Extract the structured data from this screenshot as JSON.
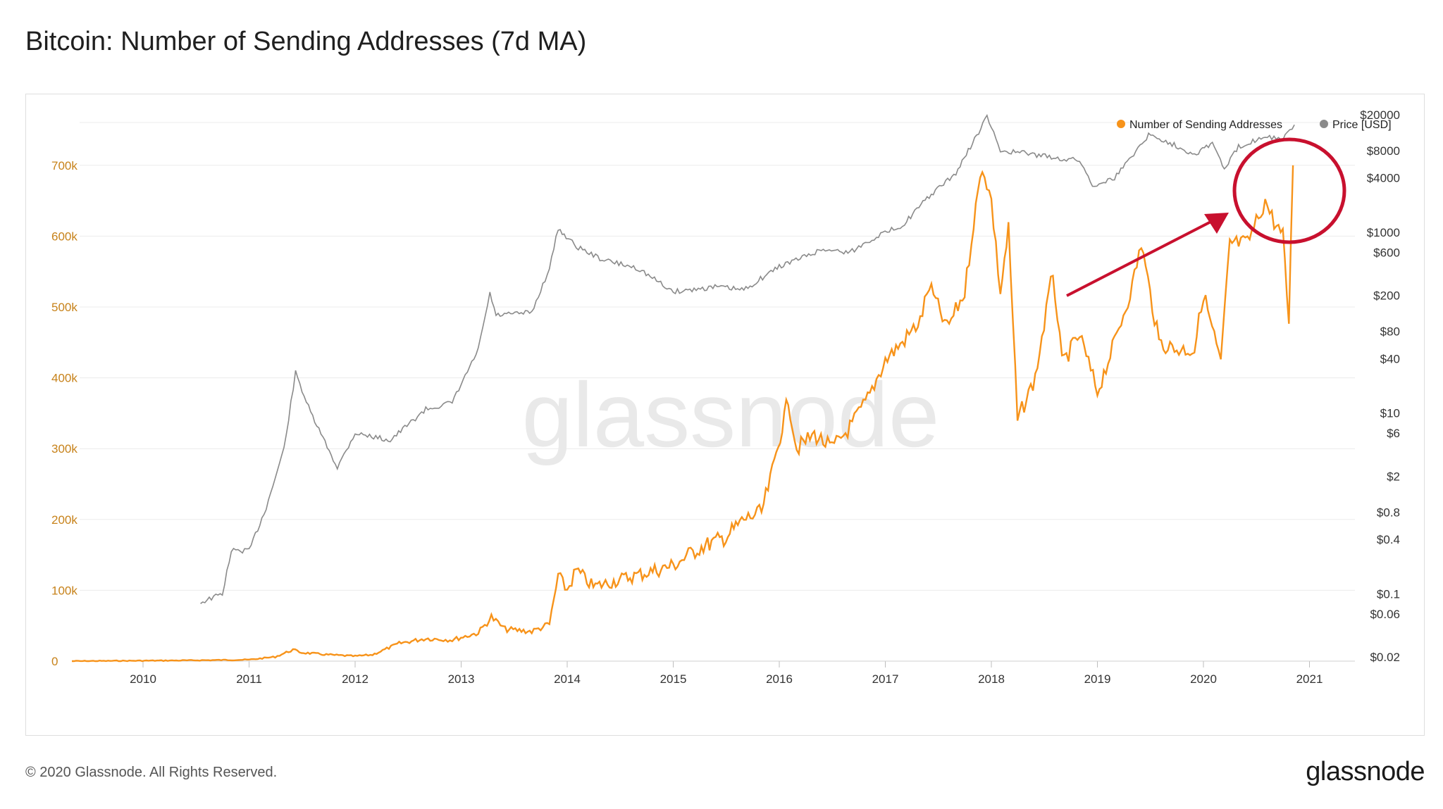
{
  "page": {
    "title": "Bitcoin: Number of Sending Addresses (7d MA)",
    "copyright": "© 2020 Glassnode. All Rights Reserved.",
    "logo_text": "glassnode",
    "watermark": "glassnode"
  },
  "colors": {
    "addresses": "#f7931a",
    "price": "#8a8a8a",
    "annotation": "#c8102e",
    "grid": "#ececec",
    "left_axis_text": "#c7821a"
  },
  "chart_data": {
    "type": "line",
    "x_axis": {
      "ticks": [
        "2010",
        "2011",
        "2012",
        "2013",
        "2014",
        "2015",
        "2016",
        "2017",
        "2018",
        "2019",
        "2020",
        "2021"
      ]
    },
    "y_left": {
      "ticks": [
        "0",
        "100k",
        "200k",
        "300k",
        "400k",
        "500k",
        "600k",
        "700k"
      ],
      "range": [
        0,
        800000
      ]
    },
    "y_right": {
      "scale": "log",
      "ticks": [
        "$20000",
        "$8000",
        "$4000",
        "$1000",
        "$600",
        "$200",
        "$80",
        "$40",
        "$10",
        "$6",
        "$2",
        "$0.8",
        "$0.4",
        "$0.1",
        "$0.06",
        "$0.02"
      ],
      "tick_values": [
        20000,
        8000,
        4000,
        1000,
        600,
        200,
        80,
        40,
        10,
        6,
        2,
        0.8,
        0.4,
        0.1,
        0.06,
        0.02
      ]
    },
    "legend": {
      "position": "top-right",
      "items": [
        "Number of Sending Addresses",
        "Price [USD]"
      ]
    },
    "series": [
      {
        "name": "Number of Sending Addresses",
        "axis": "left",
        "points": [
          [
            "2009-05-01",
            0
          ],
          [
            "2010-06-01",
            1000
          ],
          [
            "2011-01-01",
            2000
          ],
          [
            "2011-04-01",
            6000
          ],
          [
            "2011-06-01",
            16000
          ],
          [
            "2011-07-01",
            12000
          ],
          [
            "2011-10-01",
            9000
          ],
          [
            "2012-01-01",
            7000
          ],
          [
            "2012-03-01",
            9000
          ],
          [
            "2012-06-01",
            25000
          ],
          [
            "2012-09-01",
            32000
          ],
          [
            "2012-12-01",
            30000
          ],
          [
            "2013-03-01",
            40000
          ],
          [
            "2013-04-15",
            62000
          ],
          [
            "2013-06-01",
            45000
          ],
          [
            "2013-09-01",
            42000
          ],
          [
            "2013-11-01",
            52000
          ],
          [
            "2013-12-01",
            120000
          ],
          [
            "2014-01-01",
            100000
          ],
          [
            "2014-02-01",
            128000
          ],
          [
            "2014-04-01",
            105000
          ],
          [
            "2014-07-01",
            115000
          ],
          [
            "2014-10-01",
            125000
          ],
          [
            "2015-01-01",
            135000
          ],
          [
            "2015-04-01",
            160000
          ],
          [
            "2015-07-01",
            175000
          ],
          [
            "2015-09-01",
            200000
          ],
          [
            "2015-11-01",
            210000
          ],
          [
            "2015-12-01",
            255000
          ],
          [
            "2016-02-01",
            370000
          ],
          [
            "2016-03-01",
            300000
          ],
          [
            "2016-05-01",
            320000
          ],
          [
            "2016-07-01",
            300000
          ],
          [
            "2016-09-01",
            330000
          ],
          [
            "2016-11-01",
            370000
          ],
          [
            "2017-01-01",
            425000
          ],
          [
            "2017-03-01",
            450000
          ],
          [
            "2017-05-01",
            480000
          ],
          [
            "2017-06-01",
            530000
          ],
          [
            "2017-08-01",
            470000
          ],
          [
            "2017-10-01",
            520000
          ],
          [
            "2017-11-01",
            620000
          ],
          [
            "2017-12-01",
            700000
          ],
          [
            "2018-01-01",
            650000
          ],
          [
            "2018-02-01",
            520000
          ],
          [
            "2018-03-01",
            610000
          ],
          [
            "2018-04-01",
            340000
          ],
          [
            "2018-06-01",
            400000
          ],
          [
            "2018-08-01",
            550000
          ],
          [
            "2018-09-01",
            420000
          ],
          [
            "2018-11-01",
            460000
          ],
          [
            "2019-01-01",
            380000
          ],
          [
            "2019-03-01",
            450000
          ],
          [
            "2019-05-01",
            530000
          ],
          [
            "2019-06-01",
            590000
          ],
          [
            "2019-08-01",
            450000
          ],
          [
            "2019-10-01",
            440000
          ],
          [
            "2019-12-01",
            440000
          ],
          [
            "2020-01-01",
            520000
          ],
          [
            "2020-03-01",
            420000
          ],
          [
            "2020-04-01",
            590000
          ],
          [
            "2020-06-01",
            590000
          ],
          [
            "2020-08-01",
            650000
          ],
          [
            "2020-09-01",
            620000
          ],
          [
            "2020-10-01",
            600000
          ],
          [
            "2020-10-22",
            480000
          ],
          [
            "2020-11-05",
            700000
          ]
        ]
      },
      {
        "name": "Price [USD]",
        "axis": "right",
        "points": [
          [
            "2010-07-18",
            0.08
          ],
          [
            "2010-10-01",
            0.1
          ],
          [
            "2010-11-01",
            0.3
          ],
          [
            "2011-01-01",
            0.3
          ],
          [
            "2011-03-01",
            0.9
          ],
          [
            "2011-05-01",
            4
          ],
          [
            "2011-06-10",
            28
          ],
          [
            "2011-08-01",
            10
          ],
          [
            "2011-11-01",
            2.5
          ],
          [
            "2012-01-01",
            6
          ],
          [
            "2012-05-01",
            5
          ],
          [
            "2012-09-01",
            11
          ],
          [
            "2012-12-01",
            13
          ],
          [
            "2013-03-01",
            50
          ],
          [
            "2013-04-10",
            210
          ],
          [
            "2013-05-01",
            120
          ],
          [
            "2013-09-01",
            130
          ],
          [
            "2013-11-01",
            400
          ],
          [
            "2013-12-01",
            1100
          ],
          [
            "2014-02-01",
            700
          ],
          [
            "2014-05-01",
            500
          ],
          [
            "2014-09-01",
            400
          ],
          [
            "2015-01-01",
            220
          ],
          [
            "2015-06-01",
            250
          ],
          [
            "2015-09-01",
            230
          ],
          [
            "2016-01-01",
            420
          ],
          [
            "2016-06-01",
            650
          ],
          [
            "2016-09-01",
            600
          ],
          [
            "2016-12-01",
            900
          ],
          [
            "2017-03-01",
            1200
          ],
          [
            "2017-06-01",
            2500
          ],
          [
            "2017-09-01",
            4500
          ],
          [
            "2017-12-17",
            19000
          ],
          [
            "2018-02-01",
            8000
          ],
          [
            "2018-05-01",
            7500
          ],
          [
            "2018-09-01",
            6500
          ],
          [
            "2018-11-01",
            6300
          ],
          [
            "2018-12-15",
            3300
          ],
          [
            "2019-03-01",
            4000
          ],
          [
            "2019-06-26",
            12000
          ],
          [
            "2019-09-01",
            10000
          ],
          [
            "2019-12-01",
            7300
          ],
          [
            "2020-02-01",
            9800
          ],
          [
            "2020-03-13",
            5000
          ],
          [
            "2020-05-01",
            8800
          ],
          [
            "2020-08-01",
            11700
          ],
          [
            "2020-10-01",
            10600
          ],
          [
            "2020-11-10",
            15500
          ]
        ]
      }
    ],
    "annotations": [
      "red arrow pointing at recent spike",
      "red circle around late-2020 region"
    ]
  }
}
